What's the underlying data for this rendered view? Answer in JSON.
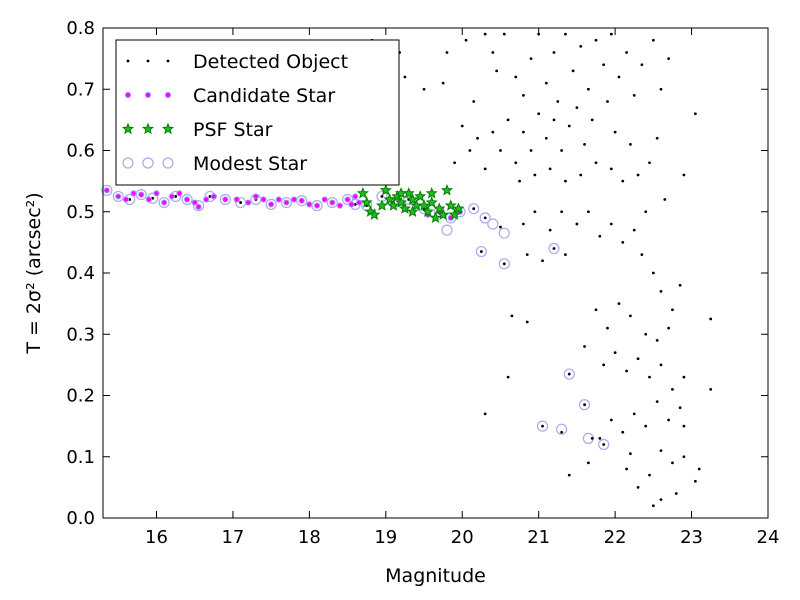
{
  "chart_data": {
    "type": "scatter",
    "title": "",
    "xlabel": "Magnitude",
    "ylabel": "T = 2σ² (arcsec²)",
    "xlim": [
      15.3,
      24
    ],
    "ylim": [
      0.0,
      0.8
    ],
    "xticks": [
      "16",
      "17",
      "18",
      "19",
      "20",
      "21",
      "22",
      "23",
      "24"
    ],
    "yticks": [
      "0.0",
      "0.1",
      "0.2",
      "0.3",
      "0.4",
      "0.5",
      "0.6",
      "0.7",
      "0.8"
    ],
    "grid": false,
    "legend_position": "top-left",
    "series": [
      {
        "name": "Detected Object",
        "color": "#000000",
        "marker": "dot",
        "points": [
          [
            15.35,
            0.535
          ],
          [
            15.5,
            0.525
          ],
          [
            15.65,
            0.52
          ],
          [
            15.8,
            0.528
          ],
          [
            15.95,
            0.522
          ],
          [
            16.1,
            0.515
          ],
          [
            16.25,
            0.525
          ],
          [
            16.4,
            0.52
          ],
          [
            16.55,
            0.51
          ],
          [
            16.7,
            0.525
          ],
          [
            16.9,
            0.52
          ],
          [
            17.1,
            0.515
          ],
          [
            17.3,
            0.52
          ],
          [
            17.5,
            0.512
          ],
          [
            17.7,
            0.515
          ],
          [
            17.9,
            0.518
          ],
          [
            18.1,
            0.51
          ],
          [
            18.3,
            0.515
          ],
          [
            18.5,
            0.52
          ],
          [
            18.6,
            0.512
          ],
          [
            18.75,
            0.51
          ],
          [
            18.95,
            0.525
          ],
          [
            19.1,
            0.515
          ],
          [
            19.3,
            0.52
          ],
          [
            19.5,
            0.505
          ],
          [
            19.7,
            0.5
          ],
          [
            19.85,
            0.49
          ],
          [
            19.97,
            0.5
          ],
          [
            20.15,
            0.505
          ],
          [
            20.3,
            0.49
          ],
          [
            20.25,
            0.435
          ],
          [
            20.55,
            0.415
          ],
          [
            20.5,
            0.475
          ],
          [
            20.3,
            0.17
          ],
          [
            20.65,
            0.33
          ],
          [
            20.85,
            0.32
          ],
          [
            20.6,
            0.23
          ],
          [
            21.05,
            0.15
          ],
          [
            21.3,
            0.14
          ],
          [
            21.4,
            0.235
          ],
          [
            21.6,
            0.185
          ],
          [
            21.7,
            0.13
          ],
          [
            21.85,
            0.12
          ],
          [
            21.2,
            0.44
          ],
          [
            21.35,
            0.43
          ],
          [
            18.82,
            0.78
          ],
          [
            19.18,
            0.76
          ],
          [
            19.25,
            0.72
          ],
          [
            19.5,
            0.7
          ],
          [
            19.75,
            0.71
          ],
          [
            19.8,
            0.76
          ],
          [
            20.05,
            0.78
          ],
          [
            20.3,
            0.79
          ],
          [
            20.4,
            0.76
          ],
          [
            20.55,
            0.79
          ],
          [
            20.45,
            0.73
          ],
          [
            20.15,
            0.68
          ],
          [
            20.7,
            0.72
          ],
          [
            20.8,
            0.69
          ],
          [
            20.9,
            0.75
          ],
          [
            21.0,
            0.79
          ],
          [
            21.1,
            0.71
          ],
          [
            21.2,
            0.76
          ],
          [
            21.25,
            0.68
          ],
          [
            21.35,
            0.79
          ],
          [
            21.45,
            0.73
          ],
          [
            21.55,
            0.77
          ],
          [
            21.65,
            0.7
          ],
          [
            21.75,
            0.78
          ],
          [
            21.85,
            0.74
          ],
          [
            21.95,
            0.79
          ],
          [
            22.05,
            0.72
          ],
          [
            22.15,
            0.76
          ],
          [
            22.25,
            0.69
          ],
          [
            22.35,
            0.74
          ],
          [
            22.5,
            0.78
          ],
          [
            22.6,
            0.7
          ],
          [
            22.7,
            0.75
          ],
          [
            23.05,
            0.66
          ],
          [
            22.55,
            0.62
          ],
          [
            22.2,
            0.61
          ],
          [
            22.0,
            0.63
          ],
          [
            21.9,
            0.68
          ],
          [
            21.7,
            0.65
          ],
          [
            21.6,
            0.61
          ],
          [
            21.5,
            0.67
          ],
          [
            21.4,
            0.64
          ],
          [
            21.3,
            0.6
          ],
          [
            21.2,
            0.65
          ],
          [
            21.1,
            0.62
          ],
          [
            21.0,
            0.66
          ],
          [
            20.9,
            0.6
          ],
          [
            20.8,
            0.63
          ],
          [
            20.7,
            0.58
          ],
          [
            20.6,
            0.65
          ],
          [
            20.5,
            0.6
          ],
          [
            20.4,
            0.63
          ],
          [
            20.3,
            0.57
          ],
          [
            20.2,
            0.62
          ],
          [
            20.1,
            0.6
          ],
          [
            20.0,
            0.64
          ],
          [
            19.9,
            0.58
          ],
          [
            20.75,
            0.55
          ],
          [
            20.95,
            0.56
          ],
          [
            21.15,
            0.57
          ],
          [
            21.35,
            0.55
          ],
          [
            21.55,
            0.56
          ],
          [
            21.75,
            0.58
          ],
          [
            21.95,
            0.57
          ],
          [
            22.1,
            0.55
          ],
          [
            22.3,
            0.56
          ],
          [
            22.45,
            0.58
          ],
          [
            22.9,
            0.56
          ],
          [
            22.65,
            0.52
          ],
          [
            22.4,
            0.5
          ],
          [
            22.25,
            0.47
          ],
          [
            22.1,
            0.45
          ],
          [
            21.95,
            0.48
          ],
          [
            21.8,
            0.46
          ],
          [
            21.65,
            0.5
          ],
          [
            21.5,
            0.48
          ],
          [
            21.3,
            0.5
          ],
          [
            21.15,
            0.47
          ],
          [
            20.95,
            0.5
          ],
          [
            20.8,
            0.48
          ],
          [
            20.85,
            0.43
          ],
          [
            21.05,
            0.42
          ],
          [
            22.35,
            0.43
          ],
          [
            22.5,
            0.4
          ],
          [
            22.6,
            0.37
          ],
          [
            22.75,
            0.34
          ],
          [
            22.85,
            0.38
          ],
          [
            23.25,
            0.325
          ],
          [
            22.7,
            0.31
          ],
          [
            22.55,
            0.29
          ],
          [
            22.4,
            0.3
          ],
          [
            22.2,
            0.33
          ],
          [
            22.05,
            0.35
          ],
          [
            21.9,
            0.31
          ],
          [
            21.75,
            0.34
          ],
          [
            21.6,
            0.28
          ],
          [
            21.85,
            0.25
          ],
          [
            22.0,
            0.27
          ],
          [
            22.15,
            0.24
          ],
          [
            22.3,
            0.26
          ],
          [
            22.45,
            0.23
          ],
          [
            22.6,
            0.25
          ],
          [
            22.75,
            0.21
          ],
          [
            22.9,
            0.23
          ],
          [
            23.25,
            0.21
          ],
          [
            22.85,
            0.18
          ],
          [
            22.7,
            0.16
          ],
          [
            22.55,
            0.19
          ],
          [
            22.4,
            0.15
          ],
          [
            22.25,
            0.17
          ],
          [
            22.1,
            0.14
          ],
          [
            21.95,
            0.16
          ],
          [
            21.8,
            0.13
          ],
          [
            22.6,
            0.11
          ],
          [
            22.75,
            0.09
          ],
          [
            22.9,
            0.1
          ],
          [
            23.1,
            0.08
          ],
          [
            23.05,
            0.06
          ],
          [
            22.8,
            0.04
          ],
          [
            22.6,
            0.03
          ],
          [
            22.45,
            0.07
          ],
          [
            22.3,
            0.05
          ],
          [
            22.15,
            0.08
          ],
          [
            21.4,
            0.07
          ],
          [
            21.65,
            0.09
          ],
          [
            22.2,
            0.105
          ],
          [
            22.5,
            0.02
          ],
          [
            22.9,
            0.15
          ]
        ]
      },
      {
        "name": "Candidate Star",
        "color": "#ff00ff",
        "marker": "small-circle",
        "points": [
          [
            15.35,
            0.535
          ],
          [
            15.5,
            0.525
          ],
          [
            15.6,
            0.52
          ],
          [
            15.7,
            0.53
          ],
          [
            15.8,
            0.528
          ],
          [
            15.9,
            0.52
          ],
          [
            16.0,
            0.53
          ],
          [
            16.1,
            0.515
          ],
          [
            16.2,
            0.525
          ],
          [
            16.3,
            0.53
          ],
          [
            16.4,
            0.52
          ],
          [
            16.5,
            0.515
          ],
          [
            16.55,
            0.508
          ],
          [
            16.65,
            0.52
          ],
          [
            16.75,
            0.525
          ],
          [
            16.9,
            0.52
          ],
          [
            17.05,
            0.52
          ],
          [
            17.2,
            0.515
          ],
          [
            17.3,
            0.525
          ],
          [
            17.4,
            0.52
          ],
          [
            17.5,
            0.512
          ],
          [
            17.6,
            0.52
          ],
          [
            17.7,
            0.515
          ],
          [
            17.8,
            0.52
          ],
          [
            17.9,
            0.518
          ],
          [
            18.0,
            0.512
          ],
          [
            18.1,
            0.51
          ],
          [
            18.2,
            0.52
          ],
          [
            18.3,
            0.515
          ],
          [
            18.4,
            0.51
          ],
          [
            18.5,
            0.52
          ],
          [
            18.55,
            0.512
          ],
          [
            18.6,
            0.525
          ],
          [
            18.65,
            0.515
          ],
          [
            19.55,
            0.495
          ],
          [
            19.7,
            0.5
          ],
          [
            19.85,
            0.49
          ],
          [
            19.97,
            0.5
          ]
        ]
      },
      {
        "name": "PSF Star",
        "color": "#008000",
        "marker": "star",
        "points": [
          [
            18.7,
            0.53
          ],
          [
            18.75,
            0.515
          ],
          [
            18.8,
            0.5
          ],
          [
            18.85,
            0.495
          ],
          [
            18.95,
            0.51
          ],
          [
            19.0,
            0.535
          ],
          [
            19.05,
            0.52
          ],
          [
            19.1,
            0.51
          ],
          [
            19.15,
            0.525
          ],
          [
            19.2,
            0.515
          ],
          [
            19.25,
            0.505
          ],
          [
            19.3,
            0.53
          ],
          [
            19.35,
            0.52
          ],
          [
            19.4,
            0.51
          ],
          [
            19.45,
            0.525
          ],
          [
            19.5,
            0.51
          ],
          [
            19.55,
            0.5
          ],
          [
            19.6,
            0.515
          ],
          [
            19.65,
            0.49
          ],
          [
            19.7,
            0.505
          ],
          [
            19.75,
            0.495
          ],
          [
            19.8,
            0.535
          ],
          [
            19.85,
            0.51
          ],
          [
            19.9,
            0.495
          ],
          [
            19.95,
            0.505
          ],
          [
            19.6,
            0.53
          ],
          [
            19.35,
            0.5
          ],
          [
            19.2,
            0.53
          ]
        ]
      },
      {
        "name": "Modest Star",
        "color": "#aaaaee",
        "marker": "open-circle",
        "points": [
          [
            15.35,
            0.535
          ],
          [
            15.5,
            0.525
          ],
          [
            15.65,
            0.52
          ],
          [
            15.8,
            0.528
          ],
          [
            15.95,
            0.522
          ],
          [
            16.1,
            0.515
          ],
          [
            16.25,
            0.525
          ],
          [
            16.4,
            0.52
          ],
          [
            16.55,
            0.51
          ],
          [
            16.7,
            0.525
          ],
          [
            16.9,
            0.52
          ],
          [
            17.1,
            0.515
          ],
          [
            17.3,
            0.52
          ],
          [
            17.5,
            0.512
          ],
          [
            17.7,
            0.515
          ],
          [
            17.9,
            0.518
          ],
          [
            18.1,
            0.51
          ],
          [
            18.3,
            0.515
          ],
          [
            18.5,
            0.52
          ],
          [
            18.6,
            0.512
          ],
          [
            18.75,
            0.51
          ],
          [
            18.95,
            0.525
          ],
          [
            19.1,
            0.515
          ],
          [
            19.3,
            0.52
          ],
          [
            19.5,
            0.505
          ],
          [
            19.7,
            0.5
          ],
          [
            19.85,
            0.49
          ],
          [
            19.97,
            0.5
          ],
          [
            20.15,
            0.505
          ],
          [
            20.3,
            0.49
          ],
          [
            19.8,
            0.47
          ],
          [
            20.4,
            0.48
          ],
          [
            20.55,
            0.465
          ],
          [
            20.25,
            0.435
          ],
          [
            20.55,
            0.415
          ],
          [
            21.2,
            0.44
          ],
          [
            21.05,
            0.15
          ],
          [
            21.3,
            0.145
          ],
          [
            21.4,
            0.235
          ],
          [
            21.6,
            0.185
          ],
          [
            21.65,
            0.13
          ],
          [
            21.85,
            0.12
          ]
        ]
      }
    ]
  }
}
